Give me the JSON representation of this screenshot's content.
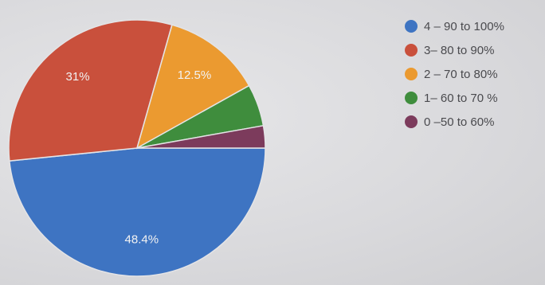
{
  "chart_data": {
    "type": "pie",
    "categories": [
      "4 – 90 to 100%",
      "3– 80 to 90%",
      "2 – 70 to 80%",
      "1– 60 to 70 %",
      "0 –50 to 60%"
    ],
    "values": [
      48.4,
      31,
      12.5,
      5.3,
      2.8
    ],
    "labels": [
      "48.4%",
      "31%",
      "12.5%",
      "",
      ""
    ],
    "colors": [
      "#3e74c2",
      "#c9503c",
      "#eb9a30",
      "#3f8d3d",
      "#7c3b5c"
    ],
    "legend_position": "right",
    "start": "90-degrees-from-top, clockwise"
  }
}
